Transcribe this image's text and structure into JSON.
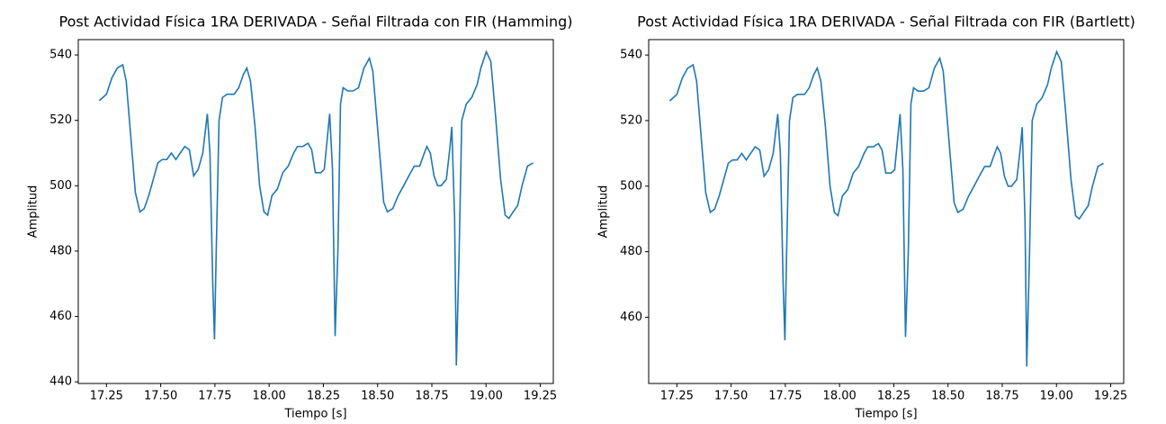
{
  "chart_data": [
    {
      "type": "line",
      "title": "Post Actividad Física 1RA DERIVADA - Señal Filtrada con FIR (Hamming)",
      "xlabel": "Tiempo [s]",
      "ylabel": "Amplitud",
      "color": "#1f77b4",
      "x": [
        17.217,
        17.25,
        17.275,
        17.3,
        17.325,
        17.341,
        17.362,
        17.383,
        17.404,
        17.424,
        17.445,
        17.466,
        17.487,
        17.507,
        17.528,
        17.549,
        17.57,
        17.59,
        17.611,
        17.632,
        17.652,
        17.673,
        17.694,
        17.715,
        17.727,
        17.74,
        17.748,
        17.756,
        17.769,
        17.785,
        17.806,
        17.839,
        17.86,
        17.881,
        17.897,
        17.914,
        17.935,
        17.956,
        17.976,
        17.993,
        18.013,
        18.038,
        18.063,
        18.088,
        18.113,
        18.13,
        18.155,
        18.179,
        18.196,
        18.213,
        18.238,
        18.254,
        18.279,
        18.292,
        18.304,
        18.317,
        18.329,
        18.341,
        18.362,
        18.387,
        18.412,
        18.437,
        18.462,
        18.478,
        18.503,
        18.528,
        18.545,
        18.57,
        18.595,
        18.62,
        18.644,
        18.669,
        18.694,
        18.71,
        18.727,
        18.743,
        18.76,
        18.777,
        18.793,
        18.817,
        18.834,
        18.842,
        18.855,
        18.863,
        18.876,
        18.888,
        18.909,
        18.934,
        18.959,
        18.976,
        19.001,
        19.022,
        19.043,
        19.067,
        19.088,
        19.105,
        19.125,
        19.146,
        19.166,
        19.191,
        19.217
      ],
      "values": [
        526,
        528,
        533,
        536,
        537,
        532,
        515,
        498,
        492,
        493,
        497,
        502,
        507,
        508,
        508,
        510,
        508,
        510,
        512,
        511,
        503,
        505,
        510,
        522,
        510,
        470,
        453,
        480,
        520,
        527,
        528,
        528,
        530,
        534,
        536,
        532,
        518,
        500,
        492,
        491,
        497,
        499,
        504,
        506,
        510,
        512,
        512,
        513,
        511,
        504,
        504,
        505,
        522,
        505,
        454,
        480,
        525,
        530,
        529,
        529,
        530,
        536,
        539,
        535,
        515,
        495,
        492,
        493,
        497,
        500,
        503,
        506,
        506,
        509,
        512,
        510,
        503,
        500,
        500,
        502,
        512,
        518,
        490,
        445,
        480,
        520,
        525,
        527,
        531,
        536,
        541,
        538,
        522,
        502,
        491,
        490,
        492,
        494,
        500,
        506,
        507
      ],
      "ylim": [
        439.5,
        544.7
      ],
      "yticks": [
        440,
        460,
        480,
        500,
        520,
        540
      ],
      "xlim": [
        17.12,
        19.31
      ],
      "xticks": [
        17.25,
        {
          "value": 17.5,
          "label": "17.50"
        },
        17.75,
        {
          "value": 18.0,
          "label": "18.00"
        },
        18.25,
        {
          "value": 18.5,
          "label": "18.50"
        },
        18.75,
        {
          "value": 19.0,
          "label": "19.00"
        },
        19.25
      ]
    },
    {
      "type": "line",
      "title": "Post Actividad Física 1RA DERIVADA - Señal Filtrada con FIR (Bartlett)",
      "xlabel": "Tiempo [s]",
      "ylabel": "Amplitud",
      "color": "#1f77b4",
      "x": [
        17.217,
        17.25,
        17.275,
        17.3,
        17.325,
        17.341,
        17.362,
        17.383,
        17.404,
        17.424,
        17.445,
        17.466,
        17.487,
        17.507,
        17.528,
        17.549,
        17.57,
        17.59,
        17.611,
        17.632,
        17.652,
        17.673,
        17.694,
        17.715,
        17.727,
        17.74,
        17.748,
        17.756,
        17.769,
        17.785,
        17.806,
        17.839,
        17.86,
        17.881,
        17.897,
        17.914,
        17.935,
        17.956,
        17.976,
        17.993,
        18.013,
        18.038,
        18.063,
        18.088,
        18.113,
        18.13,
        18.155,
        18.179,
        18.196,
        18.213,
        18.238,
        18.254,
        18.279,
        18.292,
        18.304,
        18.317,
        18.329,
        18.341,
        18.362,
        18.387,
        18.412,
        18.437,
        18.462,
        18.478,
        18.503,
        18.528,
        18.545,
        18.57,
        18.595,
        18.62,
        18.644,
        18.669,
        18.694,
        18.71,
        18.727,
        18.743,
        18.76,
        18.777,
        18.793,
        18.817,
        18.834,
        18.842,
        18.855,
        18.863,
        18.876,
        18.888,
        18.909,
        18.934,
        18.959,
        18.976,
        19.001,
        19.022,
        19.043,
        19.067,
        19.088,
        19.105,
        19.125,
        19.146,
        19.166,
        19.191,
        19.217
      ],
      "values": [
        526,
        528,
        533,
        536,
        537,
        532,
        515,
        498,
        492,
        493,
        497,
        502,
        507,
        508,
        508,
        510,
        508,
        510,
        512,
        511,
        503,
        505,
        510,
        522,
        510,
        470,
        453,
        480,
        520,
        527,
        528,
        528,
        530,
        534,
        536,
        532,
        518,
        500,
        492,
        491,
        497,
        499,
        504,
        506,
        510,
        512,
        512,
        513,
        511,
        504,
        504,
        505,
        522,
        505,
        454,
        480,
        525,
        530,
        529,
        529,
        530,
        536,
        539,
        535,
        515,
        495,
        492,
        493,
        497,
        500,
        503,
        506,
        506,
        509,
        512,
        510,
        503,
        500,
        500,
        502,
        512,
        518,
        490,
        445,
        480,
        520,
        525,
        527,
        531,
        536,
        541,
        538,
        522,
        502,
        491,
        490,
        492,
        494,
        500,
        506,
        507
      ],
      "ylim": [
        439.8,
        544.7
      ],
      "yticks": [
        460,
        480,
        500,
        520,
        540
      ],
      "xlim": [
        17.12,
        19.31
      ],
      "xticks": [
        17.25,
        {
          "value": 17.5,
          "label": "17.50"
        },
        17.75,
        {
          "value": 18.0,
          "label": "18.00"
        },
        18.25,
        {
          "value": 18.5,
          "label": "18.50"
        },
        18.75,
        {
          "value": 19.0,
          "label": "19.00"
        },
        19.25
      ]
    }
  ]
}
